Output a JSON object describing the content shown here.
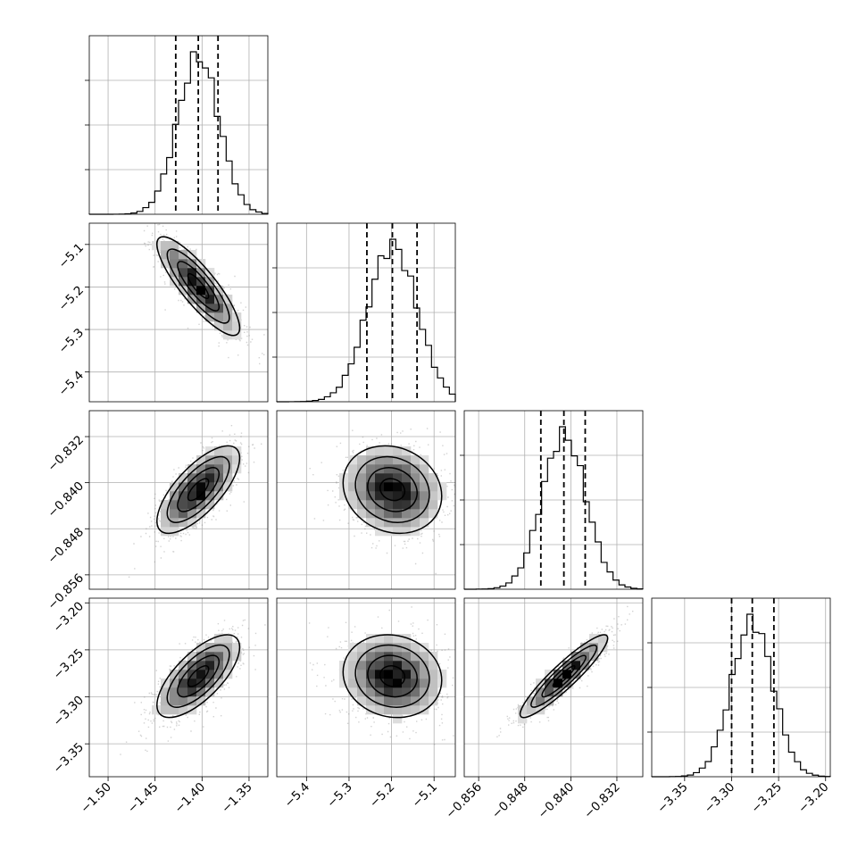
{
  "chart_data": {
    "type": "corner",
    "grid": true,
    "parameters": [
      {
        "range": [
          -1.52,
          -1.33
        ],
        "ticks": [
          -1.5,
          -1.45,
          -1.4,
          -1.35
        ],
        "tick_labels": [
          "−1.50",
          "−1.45",
          "−1.40",
          "−1.35"
        ],
        "quantiles": [
          -1.428,
          -1.404,
          -1.383
        ],
        "mean": -1.404,
        "sd": 0.022
      },
      {
        "range": [
          -5.47,
          -5.05
        ],
        "ticks": [
          -5.4,
          -5.3,
          -5.2,
          -5.1
        ],
        "tick_labels": [
          "−5.4",
          "−5.3",
          "−5.2",
          "−5.1"
        ],
        "quantiles": [
          -5.258,
          -5.198,
          -5.14
        ],
        "mean": -5.198,
        "sd": 0.058
      },
      {
        "range": [
          -0.8585,
          -0.8275
        ],
        "ticks": [
          -0.856,
          -0.848,
          -0.84,
          -0.832
        ],
        "tick_labels": [
          "−0.856",
          "−0.848",
          "−0.840",
          "−0.832"
        ],
        "quantiles": [
          -0.8452,
          -0.8412,
          -0.8375
        ],
        "mean": -0.8412,
        "sd": 0.0038
      },
      {
        "range": [
          -3.385,
          -3.195
        ],
        "ticks": [
          -3.35,
          -3.3,
          -3.25,
          -3.2
        ],
        "tick_labels": [
          "−3.35",
          "−3.30",
          "−3.25",
          "−3.20"
        ],
        "quantiles": [
          -3.3,
          -3.278,
          -3.255
        ],
        "mean": -3.278,
        "sd": 0.022
      }
    ],
    "correlations": {
      "1-0": -0.85,
      "2-0": 0.72,
      "2-1": -0.15,
      "3-0": 0.7,
      "3-1": -0.1,
      "3-2": 0.92
    },
    "histogram_bins": 30,
    "contour_levels": [
      0.5,
      1.0,
      1.5,
      2.0
    ],
    "colors": {
      "line": "#000000",
      "grid": "#b0b0b0",
      "density_scale": [
        "#ffffff",
        "#000000"
      ],
      "sample_points": "#7f7f7f"
    }
  }
}
